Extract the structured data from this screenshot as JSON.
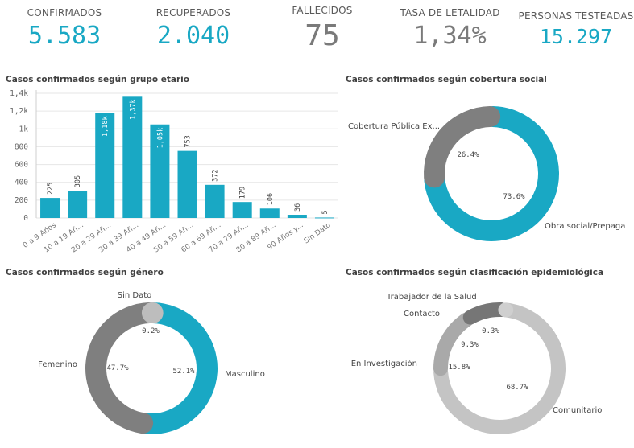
{
  "kpis": [
    {
      "label": "CONFIRMADOS",
      "value": "5.583",
      "color": "#19a8c4"
    },
    {
      "label": "RECUPERADOS",
      "value": "2.040",
      "color": "#19a8c4"
    },
    {
      "label": "FALLECIDOS",
      "value": "75",
      "color": "#7a7a7a"
    },
    {
      "label": "TASA DE LETALIDAD",
      "value": "1,34%",
      "color": "#7a7a7a"
    },
    {
      "label": "PERSONAS TESTEADAS",
      "value": "15.297",
      "color": "#19a8c4"
    }
  ],
  "chart_data": [
    {
      "type": "bar",
      "title": "Casos confirmados según grupo etario",
      "categories": [
        "0 a 9 Años",
        "10 a 19 Añ...",
        "20 a 29 Añ...",
        "30 a 39 Añ...",
        "40 a 49 Añ...",
        "50 a 59 Añ...",
        "60 a 69 Añ...",
        "70 a 79 Añ...",
        "80 a 89 Añ...",
        "90 Años y...",
        "Sin Dato"
      ],
      "values": [
        225,
        305,
        1180,
        1370,
        1050,
        753,
        372,
        179,
        106,
        36,
        5
      ],
      "value_labels": [
        "225",
        "305",
        "1,18k",
        "1,37k",
        "1,05k",
        "753",
        "372",
        "179",
        "106",
        "36",
        "5"
      ],
      "yticks": [
        "0",
        "200",
        "400",
        "600",
        "800",
        "1k",
        "1,2k",
        "1,4k"
      ],
      "ylim": [
        0,
        1400
      ],
      "color": "#19a8c4",
      "grid": true
    },
    {
      "type": "pie",
      "title": "Casos confirmados según cobertura social",
      "labels": [
        "Obra social/Prepaga",
        "Cobertura Pública Ex..."
      ],
      "values": [
        73.6,
        26.4
      ],
      "value_labels": [
        "73.6%",
        "26.4%"
      ],
      "colors": [
        "#19a8c4",
        "#7f7f7f"
      ]
    },
    {
      "type": "pie",
      "title": "Casos confirmados según género",
      "labels": [
        "Masculino",
        "Femenino",
        "Sin Dato"
      ],
      "values": [
        52.1,
        47.7,
        0.2
      ],
      "value_labels": [
        "52.1%",
        "47.7%",
        "0.2%"
      ],
      "colors": [
        "#19a8c4",
        "#7f7f7f",
        "#bdbdbd"
      ]
    },
    {
      "type": "pie",
      "title": "Casos confirmados según clasificación epidemiológica",
      "labels": [
        "Comunitario",
        "En Investigación",
        "Contacto",
        "Trabajador de la Salud"
      ],
      "values": [
        68.7,
        15.8,
        9.3,
        0.3
      ],
      "value_labels": [
        "68.7%",
        "15.8%",
        "9.3%",
        "0.3%"
      ],
      "colors": [
        "#c4c4c4",
        "#a9a9a9",
        "#767676",
        "#cfcfcf"
      ]
    }
  ]
}
